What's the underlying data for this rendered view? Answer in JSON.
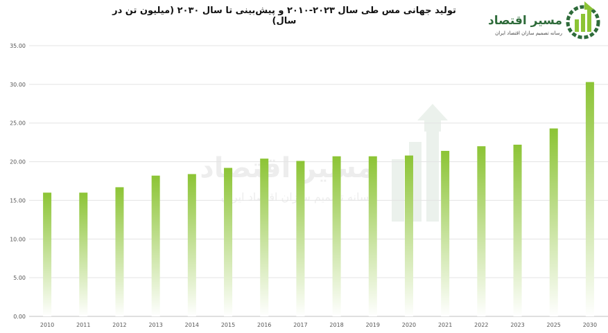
{
  "chart_data": {
    "type": "bar",
    "title": "تولید جهانی مس طی سال ۲۰۲۳-۲۰۱۰ و پیش‌بینی تا سال ۲۰۳۰ (میلیون تن در سال)",
    "categories": [
      "2010",
      "2011",
      "2012",
      "2013",
      "2014",
      "2015",
      "2016",
      "2017",
      "2018",
      "2019",
      "2020",
      "2021",
      "2022",
      "2023",
      "2025",
      "2030"
    ],
    "values": [
      16.0,
      16.0,
      16.7,
      18.2,
      18.4,
      19.2,
      20.4,
      20.1,
      20.7,
      20.7,
      20.8,
      21.4,
      22.0,
      22.2,
      24.3,
      30.3
    ],
    "ylim": [
      0,
      35
    ],
    "yticks": [
      "0.00",
      "5.00",
      "10.00",
      "15.00",
      "20.00",
      "25.00",
      "30.00",
      "35.00"
    ],
    "grid": true,
    "bar_color_top": "#8cc435",
    "bar_color_bottom": "#ffffff"
  },
  "logo": {
    "name": "مسیر اقتصاد",
    "tagline": "رسانه تصمیم سازان اقتصاد ایران",
    "color": "#2e6b3a",
    "accent": "#8cc435"
  }
}
